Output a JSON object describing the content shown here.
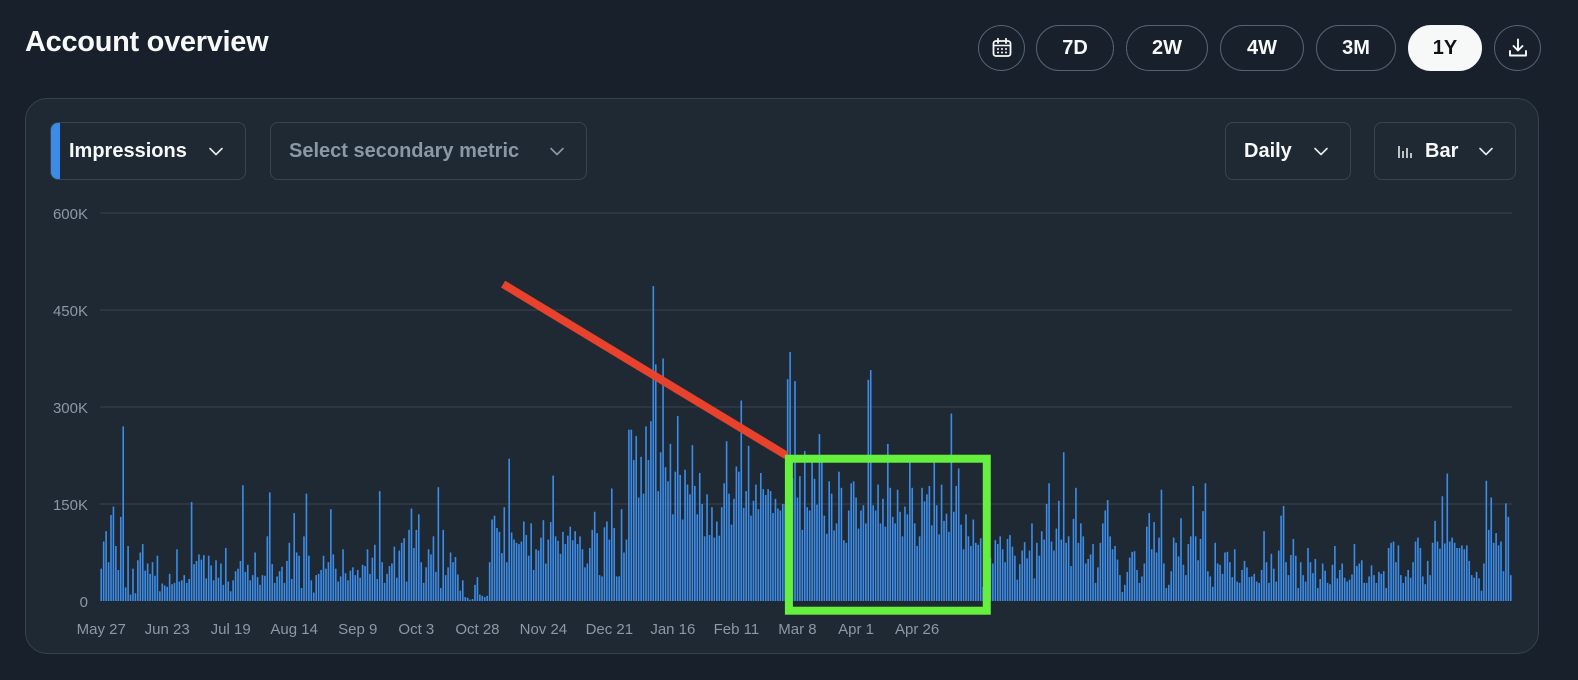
{
  "header": {
    "title": "Account overview"
  },
  "date_range": {
    "buttons": [
      "7D",
      "2W",
      "4W",
      "3M",
      "1Y"
    ],
    "selected": "1Y"
  },
  "controls": {
    "primary_metric": "Impressions",
    "secondary_metric_placeholder": "Select secondary metric",
    "interval": "Daily",
    "chart_type": "Bar"
  },
  "colors": {
    "bars": "#3c8ce7",
    "trend_annotation": "#e8412c",
    "highlight_box": "#64f03c"
  },
  "chart_data": {
    "type": "bar",
    "title": "",
    "xlabel": "",
    "ylabel": "",
    "series_name": "Impressions",
    "ylim": [
      0,
      600000
    ],
    "yticks": [
      0,
      150000,
      300000,
      450000,
      600000
    ],
    "ytick_labels": [
      "0",
      "150K",
      "300K",
      "450K",
      "600K"
    ],
    "x_start": "May 27",
    "x_tick_labels": [
      "May 27",
      "Jun 23",
      "Jul 19",
      "Aug 14",
      "Sep 9",
      "Oct 3",
      "Oct 28",
      "Nov 24",
      "Dec 21",
      "Jan 16",
      "Feb 11",
      "Mar 8",
      "Apr 1",
      "Apr 26"
    ],
    "grid": true,
    "values": [
      50000,
      92000,
      108000,
      60000,
      133000,
      146000,
      85000,
      48000,
      130000,
      270000,
      21000,
      85000,
      10000,
      50000,
      12000,
      63000,
      75000,
      88000,
      47000,
      58000,
      42000,
      60000,
      39000,
      70000,
      15000,
      27000,
      24000,
      22000,
      42000,
      26000,
      28000,
      80000,
      30000,
      32000,
      40000,
      28000,
      34000,
      153000,
      57000,
      62000,
      72000,
      64000,
      71000,
      35000,
      70000,
      55000,
      32000,
      63000,
      36000,
      58000,
      25000,
      82000,
      30000,
      15000,
      32000,
      46000,
      50000,
      62000,
      179000,
      45000,
      56000,
      32000,
      40000,
      75000,
      37000,
      25000,
      40000,
      39000,
      100000,
      168000,
      57000,
      28000,
      38000,
      46000,
      53000,
      28000,
      62000,
      90000,
      34000,
      136000,
      75000,
      70000,
      20000,
      100000,
      166000,
      70000,
      32000,
      13000,
      40000,
      42000,
      48000,
      70000,
      50000,
      60000,
      142000,
      72000,
      50000,
      30000,
      38000,
      80000,
      43000,
      32000,
      47000,
      52000,
      40000,
      48000,
      36000,
      56000,
      54000,
      80000,
      42000,
      67000,
      87000,
      34000,
      170000,
      60000,
      28000,
      42000,
      54000,
      58000,
      84000,
      36000,
      78000,
      90000,
      97000,
      30000,
      110000,
      143000,
      82000,
      110000,
      134000,
      60000,
      28000,
      52000,
      80000,
      72000,
      100000,
      45000,
      176000,
      20000,
      110000,
      40000,
      52000,
      75000,
      60000,
      68000,
      41000,
      16000,
      32000,
      6000,
      5000,
      2000,
      3000,
      25000,
      37000,
      10000,
      8000,
      6000,
      8000,
      60000,
      126000,
      132000,
      113000,
      107000,
      74000,
      145000,
      60000,
      220000,
      106000,
      95000,
      90000,
      88000,
      92000,
      123000,
      102000,
      70000,
      120000,
      48000,
      80000,
      78000,
      98000,
      125000,
      58000,
      95000,
      122000,
      194000,
      100000,
      93000,
      73000,
      107000,
      88000,
      101000,
      115000,
      94000,
      108000,
      88000,
      100000,
      80000,
      52000,
      58000,
      82000,
      110000,
      138000,
      105000,
      40000,
      38000,
      114000,
      123000,
      95000,
      174000,
      113000,
      38000,
      38000,
      142000,
      75000,
      95000,
      265000,
      265000,
      218000,
      255000,
      160000,
      223000,
      166000,
      270000,
      218000,
      278000,
      487000,
      366000,
      170000,
      230000,
      375000,
      207000,
      185000,
      243000,
      134000,
      200000,
      286000,
      195000,
      126000,
      203000,
      180000,
      165000,
      241000,
      178000,
      134000,
      198000,
      150000,
      100000,
      165000,
      102000,
      145000,
      98000,
      123000,
      101000,
      145000,
      182000,
      247000,
      166000,
      118000,
      158000,
      208000,
      200000,
      310000,
      144000,
      170000,
      240000,
      132000,
      155000,
      180000,
      142000,
      198000,
      173000,
      164000,
      173000,
      170000,
      136000,
      158000,
      143000,
      140000,
      150000,
      150000,
      343000,
      385000,
      190000,
      340000,
      160000,
      193000,
      110000,
      232000,
      145000,
      140000,
      220000,
      189000,
      149000,
      258000,
      218000,
      132000,
      104000,
      185000,
      166000,
      109000,
      120000,
      200000,
      175000,
      94000,
      90000,
      140000,
      182000,
      185000,
      160000,
      112000,
      140000,
      148000,
      120000,
      342000,
      357000,
      148000,
      140000,
      180000,
      120000,
      158000,
      115000,
      243000,
      175000,
      130000,
      120000,
      172000,
      138000,
      100000,
      146000,
      134000,
      225000,
      175000,
      120000,
      85000,
      100000,
      175000,
      154000,
      165000,
      178000,
      117000,
      225000,
      148000,
      103000,
      180000,
      124000,
      135000,
      107000,
      290000,
      138000,
      178000,
      205000,
      118000,
      80000,
      134000,
      100000,
      85000,
      126000,
      90000,
      87000,
      97000,
      22000,
      84000,
      92000,
      67000,
      58000,
      94000,
      88000,
      100000,
      80000,
      60000,
      96000,
      102000,
      84000,
      70000,
      33000,
      57000,
      78000,
      91000,
      66000,
      78000,
      120000,
      35000,
      90000,
      70000,
      108000,
      95000,
      150000,
      182000,
      92000,
      78000,
      112000,
      155000,
      95000,
      230000,
      90000,
      100000,
      54000,
      127000,
      175000,
      90000,
      120000,
      100000,
      58000,
      65000,
      72000,
      88000,
      28000,
      52000,
      90000,
      120000,
      140000,
      156000,
      100000,
      80000,
      85000,
      64000,
      40000,
      14000,
      25000,
      45000,
      67000,
      76000,
      77000,
      48000,
      28000,
      38000,
      58000,
      115000,
      136000,
      80000,
      122000,
      75000,
      98000,
      172000,
      58000,
      20000,
      25000,
      46000,
      98000,
      90000,
      69000,
      128000,
      56000,
      40000,
      88000,
      100000,
      178000,
      100000,
      63000,
      96000,
      139000,
      182000,
      46000,
      38000,
      22000,
      90000,
      58000,
      56000,
      42000,
      75000,
      76000,
      60000,
      37000,
      80000,
      30000,
      28000,
      48000,
      62000,
      52000,
      37000,
      38000,
      42000,
      30000,
      28000,
      48000,
      108000,
      60000,
      28000,
      73000,
      50000,
      30000,
      78000,
      132000,
      147000,
      60000,
      40000,
      71000,
      96000,
      70000,
      20000,
      60000,
      40000,
      30000,
      82000,
      60000,
      43000,
      65000,
      20000,
      34000,
      58000,
      47000,
      28000,
      26000,
      56000,
      85000,
      35000,
      48000,
      58000,
      36000,
      30000,
      33000,
      41000,
      88000,
      54000,
      58000,
      63000,
      28000,
      28000,
      38000,
      55000,
      40000,
      28000,
      45000,
      42000,
      46000,
      20000,
      82000,
      90000,
      92000,
      60000,
      86000,
      40000,
      28000,
      38000,
      48000,
      36000,
      60000,
      92000,
      98000,
      82000,
      38000,
      26000,
      62000,
      40000,
      90000,
      124000,
      92000,
      81000,
      162000,
      89000,
      197000,
      92000,
      98000,
      90000,
      82000,
      82000,
      86000,
      80000,
      86000,
      62000,
      40000,
      36000,
      45000,
      35000,
      16000,
      58000,
      186000,
      110000,
      160000,
      90000,
      105000,
      86000,
      92000,
      46000,
      151000,
      130000,
      40000
    ],
    "annotations": [
      {
        "type": "line",
        "color": "#e8412c",
        "from": {
          "x": "Nov 8",
          "y": 490000
        },
        "to": {
          "x": "Mar 4",
          "y": 225000
        }
      },
      {
        "type": "box",
        "color": "#64f03c",
        "from_x": "Mar 5",
        "to_x": "May 25",
        "ymin": -15000,
        "ymax": 220000
      }
    ]
  }
}
